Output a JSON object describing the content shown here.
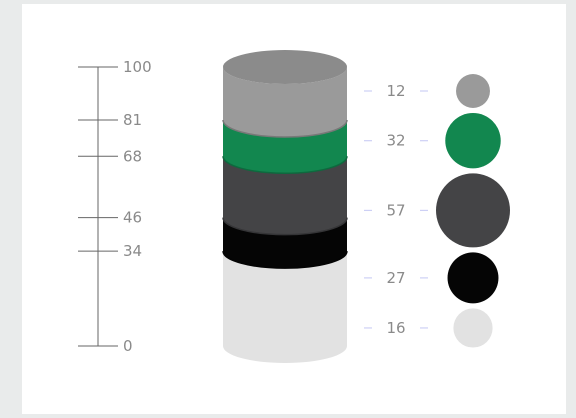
{
  "chart_data": {
    "type": "stacked-cylinder",
    "title": "",
    "ylim": [
      0,
      100
    ],
    "ticks": [
      0,
      34,
      46,
      68,
      81,
      100
    ],
    "segments": [
      {
        "label": "16",
        "value": 16,
        "from": 0,
        "to": 34,
        "color": "#e2e2e2"
      },
      {
        "label": "27",
        "value": 27,
        "from": 34,
        "to": 46,
        "color": "#050505"
      },
      {
        "label": "57",
        "value": 57,
        "from": 46,
        "to": 68,
        "color": "#444446"
      },
      {
        "label": "32",
        "value": 32,
        "from": 68,
        "to": 81,
        "color": "#12874f"
      },
      {
        "label": "12",
        "value": 12,
        "from": 81,
        "to": 100,
        "color": "#9a9a9a"
      }
    ]
  }
}
